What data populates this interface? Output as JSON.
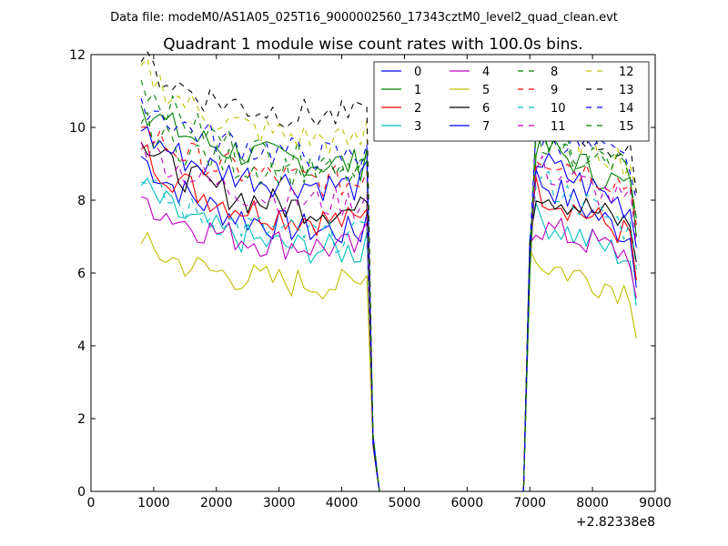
{
  "chart_data": {
    "type": "line",
    "suptitle": "Data file: modeM0/AS1A05_025T16_9000002560_17343cztM0_level2_quad_clean.evt",
    "title": "Quadrant 1 module wise count rates with 100.0s bins.",
    "xlabel": "",
    "ylabel": "",
    "x_offset_label": "+2.82338e8",
    "xlim": [
      0,
      9000
    ],
    "ylim": [
      0,
      12
    ],
    "xticks": [
      0,
      1000,
      2000,
      3000,
      4000,
      5000,
      6000,
      7000,
      8000,
      9000
    ],
    "yticks": [
      0,
      2,
      4,
      6,
      8,
      10,
      12
    ],
    "x": [
      800,
      900,
      1000,
      1100,
      1200,
      1300,
      1400,
      1500,
      1600,
      1700,
      1800,
      1900,
      2000,
      2100,
      2200,
      2300,
      2400,
      2500,
      2600,
      2700,
      2800,
      2900,
      3000,
      3100,
      3200,
      3300,
      3400,
      3500,
      3600,
      3700,
      3800,
      3900,
      4000,
      4100,
      4200,
      4300,
      4400,
      4500,
      4600,
      4700,
      4800,
      4900,
      5000,
      5100,
      5200,
      5300,
      5400,
      5500,
      5600,
      5700,
      5800,
      5900,
      6000,
      6100,
      6200,
      6300,
      6400,
      6500,
      6600,
      6700,
      6800,
      6900,
      7000,
      7100,
      7200,
      7300,
      7400,
      7500,
      7600,
      7700,
      7800,
      7900,
      8000,
      8100,
      8200,
      8300,
      8400,
      8500,
      8600,
      8700
    ],
    "legend_position": "upper right, 4 columns",
    "series": [
      {
        "name": "0",
        "color": "#0000ff",
        "style": "solid",
        "base_start": 9.2,
        "base_end": 7.0,
        "post_start": 8.6,
        "post_end": 7.0,
        "last": 5.6
      },
      {
        "name": "1",
        "color": "#008000",
        "style": "solid",
        "base_start": 10.6,
        "base_end": 8.9,
        "post_start": 9.6,
        "post_end": 8.3,
        "last": 7.0
      },
      {
        "name": "2",
        "color": "#ff0000",
        "style": "solid",
        "base_start": 9.4,
        "base_end": 7.3,
        "post_start": 8.3,
        "post_end": 7.0,
        "last": 5.8
      },
      {
        "name": "3",
        "color": "#00bfbf",
        "style": "solid",
        "base_start": 8.4,
        "base_end": 6.5,
        "post_start": 7.5,
        "post_end": 6.4,
        "last": 5.1
      },
      {
        "name": "4",
        "color": "#bf00bf",
        "style": "solid",
        "base_start": 8.1,
        "base_end": 6.6,
        "post_start": 7.3,
        "post_end": 6.5,
        "last": 5.3
      },
      {
        "name": "5",
        "color": "#bfbf00",
        "style": "solid",
        "base_start": 6.8,
        "base_end": 5.6,
        "post_start": 6.3,
        "post_end": 5.5,
        "last": 4.2
      },
      {
        "name": "6",
        "color": "#000000",
        "style": "solid",
        "base_start": 9.6,
        "base_end": 7.6,
        "post_start": 8.3,
        "post_end": 7.3,
        "last": 6.3
      },
      {
        "name": "7",
        "color": "#0000ff",
        "style": "solid",
        "base_start": 9.9,
        "base_end": 8.3,
        "post_start": 9.1,
        "post_end": 7.8,
        "last": 6.7
      },
      {
        "name": "8",
        "color": "#008000",
        "style": "dashed",
        "base_start": 11.3,
        "base_end": 8.9,
        "post_start": 9.6,
        "post_end": 8.8,
        "last": 7.5
      },
      {
        "name": "9",
        "color": "#ff0000",
        "style": "dashed",
        "base_start": 10.0,
        "base_end": 8.4,
        "post_start": 9.3,
        "post_end": 8.4,
        "last": 7.3
      },
      {
        "name": "10",
        "color": "#00bfbf",
        "style": "dashed",
        "base_start": 8.5,
        "base_end": 6.9,
        "post_start": 8.6,
        "post_end": 7.2,
        "last": 6.1
      },
      {
        "name": "11",
        "color": "#bf00bf",
        "style": "dashed",
        "base_start": 9.6,
        "base_end": 7.8,
        "post_start": 8.9,
        "post_end": 7.9,
        "last": 6.8
      },
      {
        "name": "12",
        "color": "#bfbf00",
        "style": "dashed",
        "base_start": 11.7,
        "base_end": 9.5,
        "post_start": 10.2,
        "post_end": 9.0,
        "last": 8.2
      },
      {
        "name": "13",
        "color": "#000000",
        "style": "dashed",
        "base_start": 11.8,
        "base_end": 10.2,
        "post_start": 10.5,
        "post_end": 9.2,
        "last": 8.2
      },
      {
        "name": "14",
        "color": "#0000ff",
        "style": "dashed",
        "base_start": 10.8,
        "base_end": 9.1,
        "post_start": 9.9,
        "post_end": 9.0,
        "last": 8.0
      },
      {
        "name": "15",
        "color": "#008000",
        "style": "dashed",
        "base_start": 10.1,
        "base_end": 8.6,
        "post_start": 9.8,
        "post_end": 8.8,
        "last": 7.5
      }
    ],
    "gap": {
      "drop_start": 4400,
      "zero_from": 4600,
      "zero_to": 6900,
      "rise_end": 7100
    }
  }
}
